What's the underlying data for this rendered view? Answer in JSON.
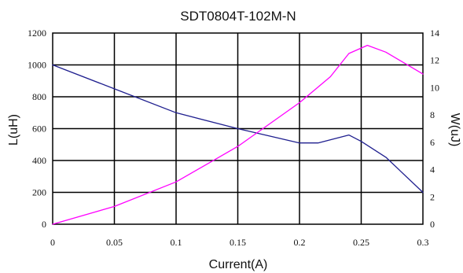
{
  "chart_data": {
    "type": "line",
    "title": "SDT0804T-102M-N",
    "xlabel": "Current(A)",
    "ylabel_left": "L(uH)",
    "ylabel_right": "W(uJ)",
    "xlim": [
      0,
      0.3
    ],
    "ylim_left": [
      0,
      1200
    ],
    "ylim_right": [
      0,
      14
    ],
    "x_ticks": [
      "0",
      "0.05",
      "0.1",
      "0.15",
      "0.2",
      "0.25",
      "0.3"
    ],
    "y_left_ticks": [
      "0",
      "200",
      "400",
      "600",
      "800",
      "1000",
      "1200"
    ],
    "y_right_ticks": [
      "0",
      "2",
      "4",
      "6",
      "8",
      "10",
      "12",
      "14"
    ],
    "grid": true,
    "series": [
      {
        "axis": "left",
        "color": "#1f1f8f",
        "x": [
          0,
          0.05,
          0.1,
          0.15,
          0.2,
          0.215,
          0.24,
          0.25,
          0.27,
          0.3
        ],
        "y": [
          1000,
          850,
          700,
          600,
          510,
          510,
          560,
          520,
          420,
          200
        ]
      },
      {
        "axis": "right",
        "color": "#ff00ff",
        "x": [
          0,
          0.05,
          0.1,
          0.15,
          0.2,
          0.225,
          0.24,
          0.255,
          0.27,
          0.3
        ],
        "y": [
          0,
          1.3,
          3.1,
          5.7,
          8.9,
          10.8,
          12.5,
          13.1,
          12.6,
          11
        ]
      }
    ]
  }
}
